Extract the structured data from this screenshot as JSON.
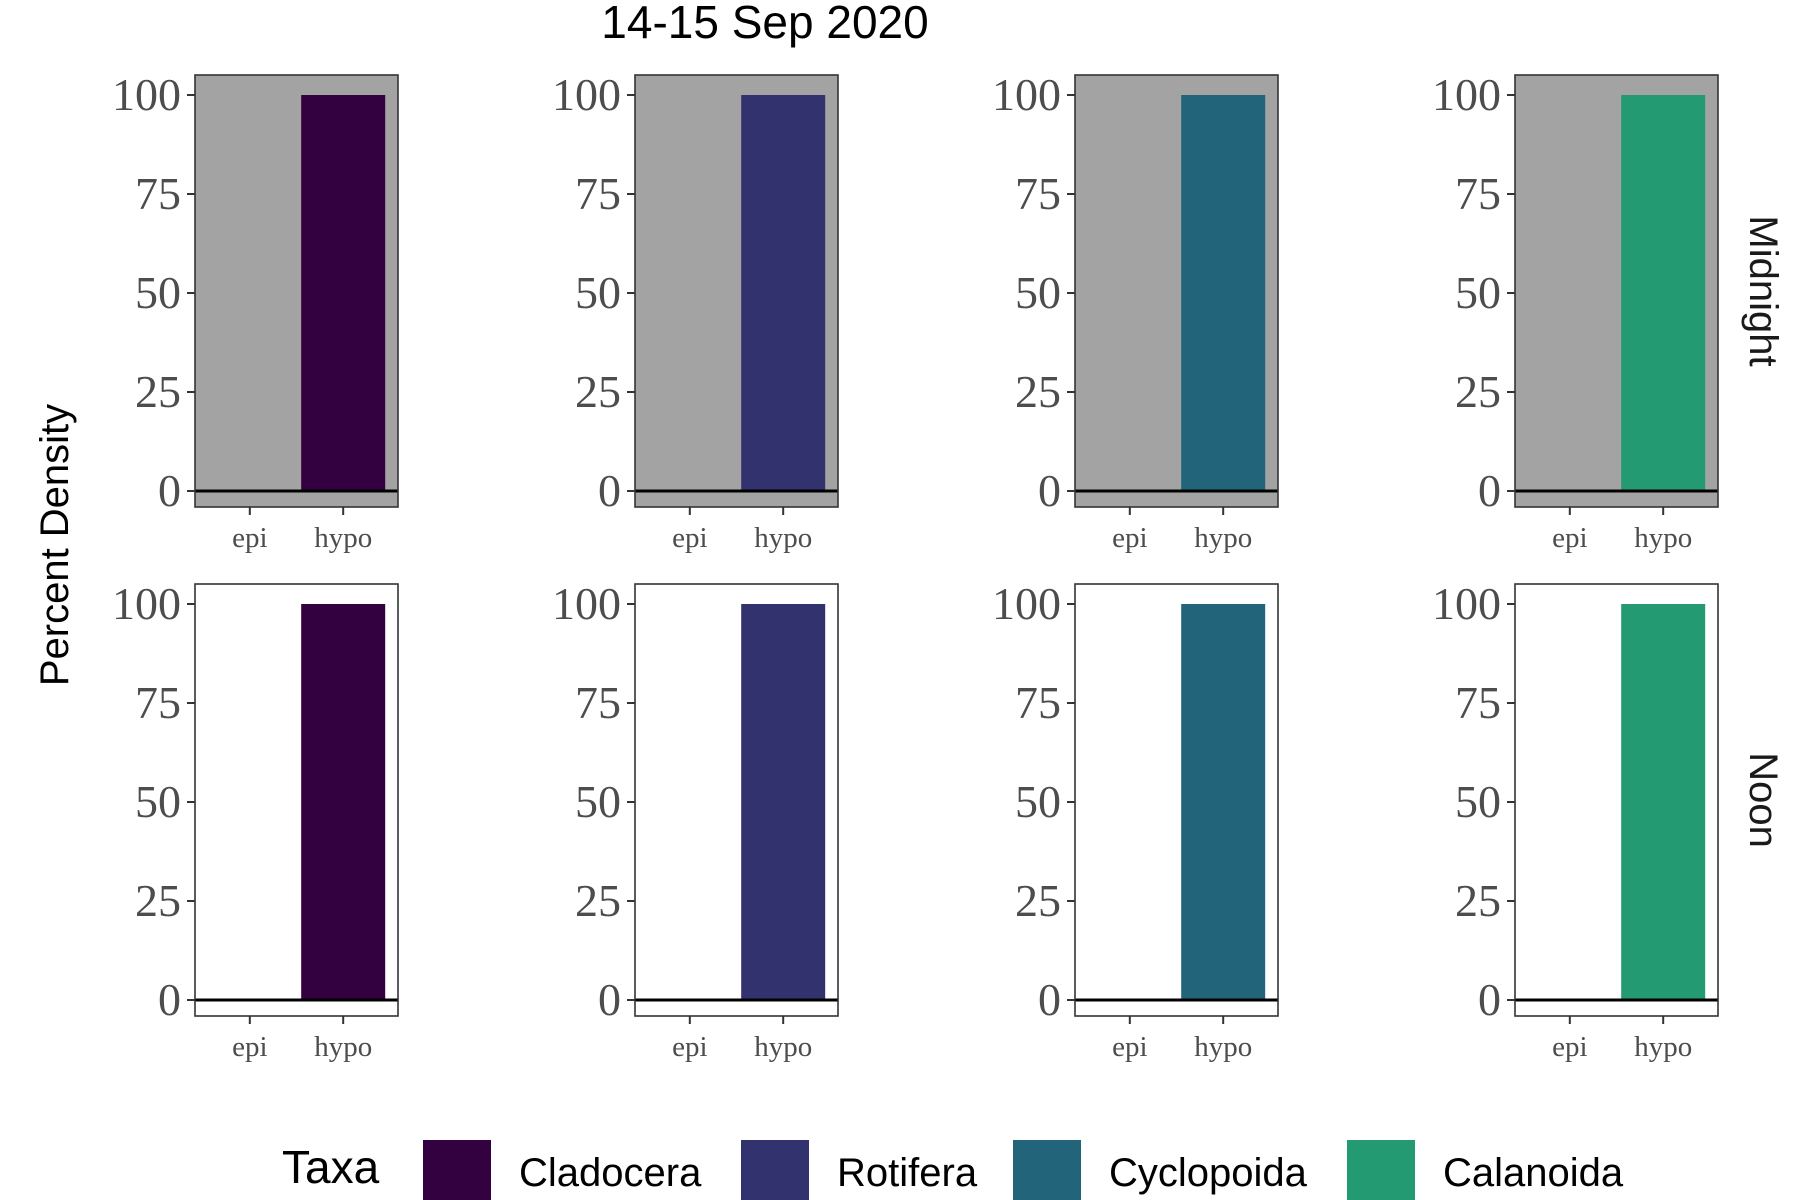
{
  "chart_data": {
    "type": "bar",
    "title": "14-15 Sep 2020",
    "ylabel": "Percent Density",
    "xlabel": "",
    "ylim": [
      0,
      100
    ],
    "yticks": [
      0,
      25,
      50,
      75,
      100
    ],
    "categories": [
      "epi",
      "hypo"
    ],
    "legend": {
      "title": "Taxa",
      "placement": "bottom",
      "entries": [
        "Cladocera",
        "Rotifera",
        "Cyclopoida",
        "Calanoida"
      ]
    },
    "colors": {
      "Cladocera": "#33013f",
      "Rotifera": "#32326e",
      "Cyclopoida": "#22657b",
      "Calanoida": "#239a71"
    },
    "panel_background": {
      "Midnight": "#a3a3a3",
      "Noon": "#ffffff"
    },
    "rows": [
      {
        "name": "Midnight",
        "panels": [
          {
            "taxon": "Cladocera",
            "values": [
              0,
              100
            ]
          },
          {
            "taxon": "Rotifera",
            "values": [
              0,
              100
            ]
          },
          {
            "taxon": "Cyclopoida",
            "values": [
              0,
              100
            ]
          },
          {
            "taxon": "Calanoida",
            "values": [
              0,
              100
            ]
          }
        ]
      },
      {
        "name": "Noon",
        "panels": [
          {
            "taxon": "Cladocera",
            "values": [
              0,
              100
            ]
          },
          {
            "taxon": "Rotifera",
            "values": [
              0,
              100
            ]
          },
          {
            "taxon": "Cyclopoida",
            "values": [
              0,
              100
            ]
          },
          {
            "taxon": "Calanoida",
            "values": [
              0,
              100
            ]
          }
        ]
      }
    ]
  }
}
